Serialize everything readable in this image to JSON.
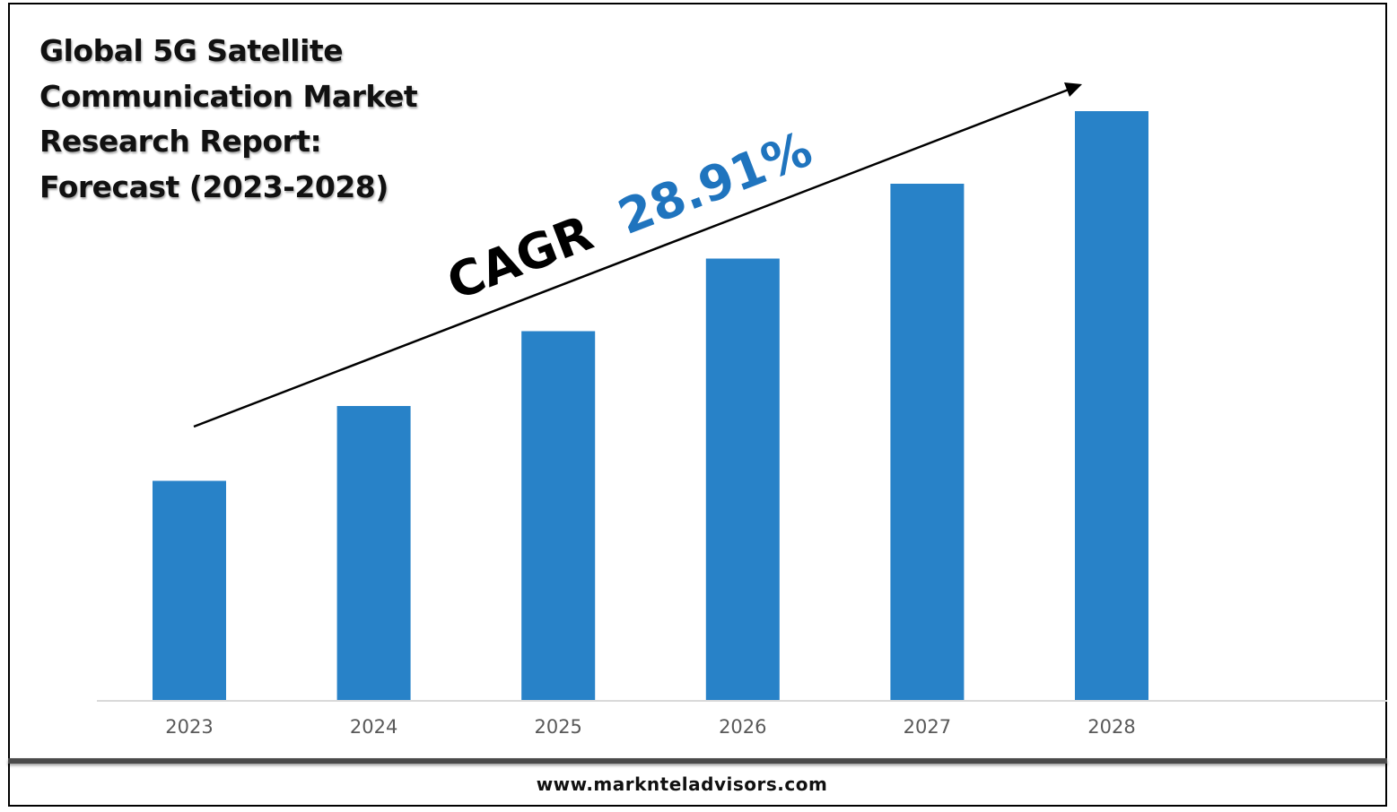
{
  "chart_data": {
    "type": "bar",
    "title": "Global 5G Satellite Communication Market Research Report: Forecast (2023-2028)",
    "categories": [
      "2023",
      "2024",
      "2025",
      "2026",
      "2027",
      "2028"
    ],
    "values": [
      1.0,
      1.34,
      1.68,
      2.01,
      2.35,
      2.68
    ],
    "ylim": [
      0,
      2.9
    ],
    "grid": false,
    "bar_color": "#2882c8",
    "annotation": {
      "prefix": "CAGR",
      "value": "28.91%",
      "value_color": "#1f74be"
    }
  },
  "footer": {
    "url": "www.marknteladvisors.com"
  }
}
